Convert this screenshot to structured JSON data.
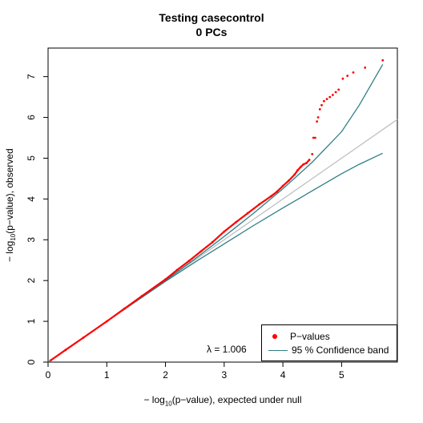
{
  "chart_data": {
    "type": "scatter",
    "title": "Testing casecontrol",
    "subtitle": "0 PCs",
    "xlabel": {
      "prefix": "− log",
      "sub": "10",
      "suffix": "(p−value), expected under null"
    },
    "ylabel": {
      "prefix": "− log",
      "sub": "10",
      "suffix": "(p−value), observed"
    },
    "xlim": [
      0,
      5.95
    ],
    "ylim": [
      0,
      7.7
    ],
    "xticks": [
      0,
      1,
      2,
      3,
      4,
      5
    ],
    "yticks": [
      0,
      1,
      2,
      3,
      4,
      5,
      6,
      7
    ],
    "grid": false,
    "legend_position": "bottom-right",
    "legend": [
      {
        "label": "P−values",
        "kind": "point",
        "color": "#ff0000"
      },
      {
        "label": "95 % Confidence band",
        "kind": "line",
        "color": "#2f7f86"
      }
    ],
    "annotation": "λ = 1.006",
    "null_line": {
      "color": "#c0c0c0",
      "x": [
        0,
        5.95
      ],
      "y": [
        0,
        5.95
      ]
    },
    "ci_upper": {
      "x": [
        0,
        1,
        2,
        2.5,
        3,
        3.5,
        4,
        4.5,
        5,
        5.3,
        5.7
      ],
      "y": [
        0,
        1,
        2,
        2.53,
        3.08,
        3.65,
        4.25,
        4.9,
        5.65,
        6.3,
        7.3
      ]
    },
    "ci_lower": {
      "x": [
        0,
        1,
        2,
        2.5,
        3,
        3.5,
        4,
        4.5,
        5,
        5.3,
        5.7
      ],
      "y": [
        0,
        1,
        1.98,
        2.45,
        2.9,
        3.35,
        3.78,
        4.2,
        4.62,
        4.85,
        5.12
      ]
    },
    "series": [
      {
        "name": "P−values",
        "color": "#ff0000",
        "x": [
          0.05,
          0.3,
          0.6,
          1.0,
          1.3,
          1.6,
          2.0,
          2.2,
          2.4,
          2.6,
          2.8,
          3.0,
          3.2,
          3.4,
          3.6,
          3.8,
          3.9,
          4.0,
          4.1,
          4.2,
          4.25,
          4.3,
          4.35,
          4.4,
          4.45,
          4.5,
          4.52,
          4.55,
          4.58,
          4.6,
          4.63,
          4.66,
          4.7,
          4.75,
          4.8,
          4.85,
          4.9,
          4.95,
          5.02,
          5.1,
          5.2,
          5.4,
          5.7
        ],
        "y": [
          0.05,
          0.3,
          0.6,
          1.0,
          1.31,
          1.62,
          2.03,
          2.26,
          2.48,
          2.71,
          2.94,
          3.2,
          3.43,
          3.65,
          3.87,
          4.07,
          4.18,
          4.32,
          4.45,
          4.6,
          4.7,
          4.78,
          4.85,
          4.88,
          4.96,
          5.1,
          5.5,
          5.5,
          5.9,
          6.0,
          6.2,
          6.3,
          6.4,
          6.45,
          6.5,
          6.55,
          6.62,
          6.68,
          6.95,
          7.02,
          7.1,
          7.22,
          7.4
        ]
      }
    ]
  }
}
